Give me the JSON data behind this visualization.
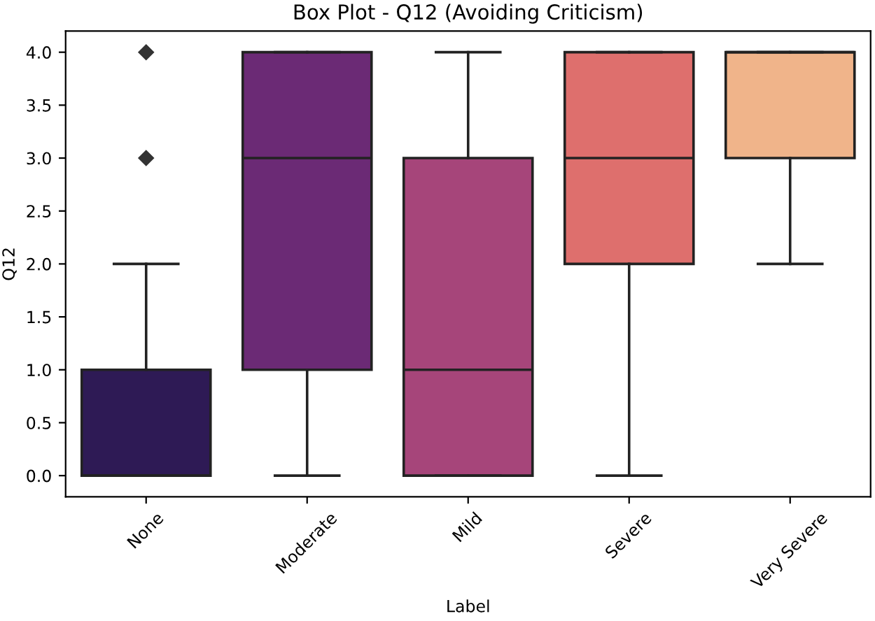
{
  "chart_data": {
    "type": "box",
    "title": "Box Plot - Q12 (Avoiding Criticism)",
    "xlabel": "Label",
    "ylabel": "Q12",
    "categories": [
      "None",
      "Moderate",
      "Mild",
      "Severe",
      "Very Severe"
    ],
    "colors": [
      "#2e1a55",
      "#6b2a75",
      "#a6457a",
      "#de6f6d",
      "#f0b48a"
    ],
    "boxes": [
      {
        "low": 0,
        "q1": 0,
        "median": 0,
        "q3": 1,
        "high": 2,
        "outliers": [
          3,
          4
        ]
      },
      {
        "low": 0,
        "q1": 1,
        "median": 3,
        "q3": 4,
        "high": 4
      },
      {
        "low": 0,
        "q1": 0,
        "median": 1,
        "q3": 3,
        "high": 4
      },
      {
        "low": 0,
        "q1": 2,
        "median": 3,
        "q3": 4,
        "high": 4
      },
      {
        "low": 2,
        "q1": 3,
        "median": 4,
        "q3": 4,
        "high": 4
      }
    ],
    "ylim": [
      -0.2,
      4.2
    ],
    "yticks": [
      {
        "value": 0,
        "label": "0.0"
      },
      {
        "value": 0.5,
        "label": "0.5"
      },
      {
        "value": 1,
        "label": "1.0"
      },
      {
        "value": 1.5,
        "label": "1.5"
      },
      {
        "value": 2,
        "label": "2.0"
      },
      {
        "value": 2.5,
        "label": "2.5"
      },
      {
        "value": 3,
        "label": "3.0"
      },
      {
        "value": 3.5,
        "label": "3.5"
      },
      {
        "value": 4,
        "label": "4.0"
      }
    ],
    "marker": "diamond",
    "grid": false
  }
}
